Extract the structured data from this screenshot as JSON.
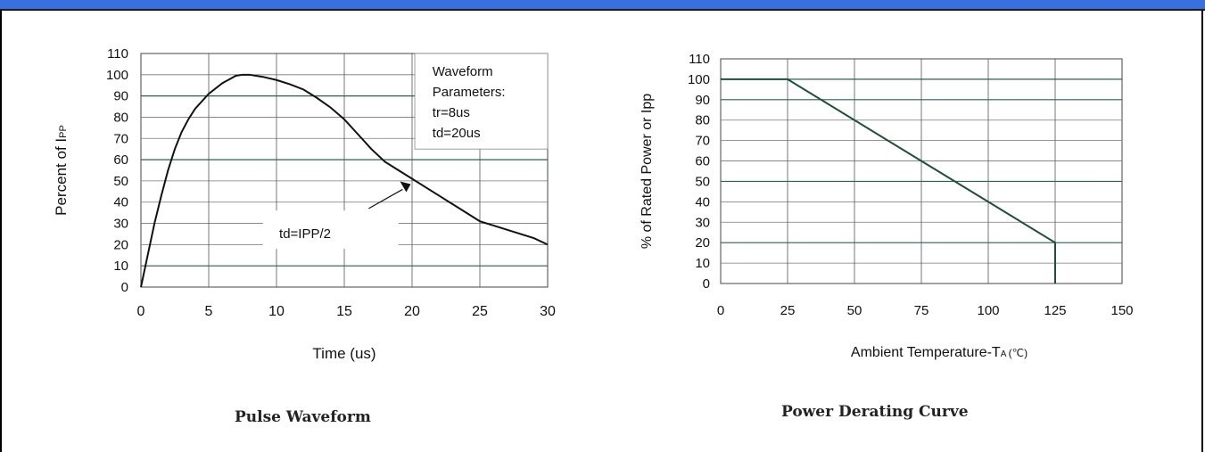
{
  "header": {
    "accent_color": "#3a6fe0"
  },
  "chart_data": [
    {
      "type": "line",
      "caption": "Pulse Waveform",
      "xlabel": "Time (us)",
      "ylabel": "Percent of I",
      "ylabel_sub": "PP",
      "xlim": [
        0,
        30
      ],
      "ylim": [
        0,
        110
      ],
      "xticks": [
        0,
        5,
        10,
        15,
        20,
        25,
        30
      ],
      "yticks": [
        0,
        10,
        20,
        30,
        40,
        50,
        60,
        70,
        80,
        90,
        100,
        110
      ],
      "grid": true,
      "series": [
        {
          "x": [
            0,
            0.5,
            1,
            1.5,
            2,
            2.5,
            3,
            3.5,
            4,
            5,
            6,
            7,
            7.5,
            8,
            9,
            10,
            11,
            12,
            13,
            14,
            15,
            16,
            17,
            18,
            19,
            20,
            21,
            22,
            23,
            24,
            25,
            26,
            27,
            28,
            29,
            30
          ],
          "y": [
            0,
            15,
            30,
            43,
            55,
            65,
            73,
            79,
            84,
            91,
            96,
            99.5,
            100,
            100,
            99,
            97.5,
            95.5,
            93,
            89,
            84.5,
            79,
            72,
            65,
            59,
            55,
            51,
            47,
            43,
            39,
            35,
            31,
            29,
            27,
            25,
            23,
            20
          ]
        }
      ],
      "annotations": {
        "params_box": [
          "Waveform",
          "Parameters:",
          "tr=8us",
          "td=20us"
        ],
        "td_label": "td=IPP/2"
      }
    },
    {
      "type": "line",
      "caption": "Power Derating Curve",
      "xlabel": "Ambient Temperature-T",
      "xlabel_sub": "A",
      "xlabel_unit": "(℃)",
      "ylabel": "% of Rated Power or Ipp",
      "xlim": [
        0,
        150
      ],
      "ylim": [
        0,
        110
      ],
      "xticks": [
        0,
        25,
        50,
        75,
        100,
        125,
        150
      ],
      "yticks": [
        0,
        10,
        20,
        30,
        40,
        50,
        60,
        70,
        80,
        90,
        100,
        110
      ],
      "grid": true,
      "line_color": "#1f4f3a",
      "series": [
        {
          "x": [
            0,
            25,
            125,
            125
          ],
          "y": [
            100,
            100,
            20,
            0
          ]
        }
      ]
    }
  ]
}
